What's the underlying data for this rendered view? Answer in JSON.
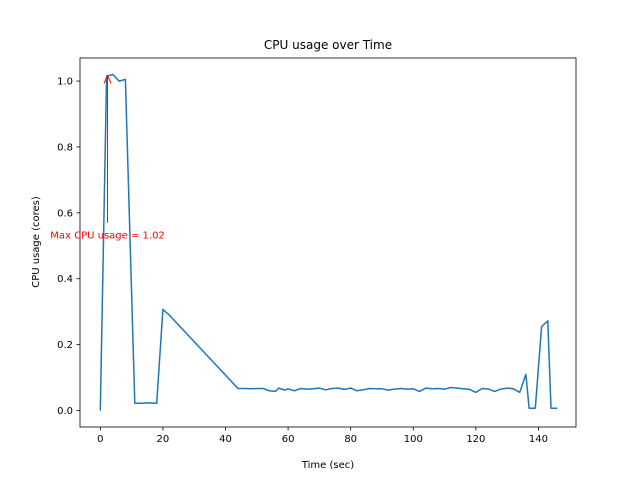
{
  "chart_data": {
    "type": "line",
    "title": "CPU usage over Time",
    "xlabel": "Time (sec)",
    "ylabel": "CPU usage (cores)",
    "xlim": [
      -6.5,
      152
    ],
    "ylim": [
      -0.05,
      1.07
    ],
    "xticks": [
      0,
      20,
      40,
      60,
      80,
      100,
      120,
      140
    ],
    "yticks": [
      0.0,
      0.2,
      0.4,
      0.6,
      0.8,
      1.0
    ],
    "xtick_labels": [
      "0",
      "20",
      "40",
      "60",
      "80",
      "100",
      "120",
      "140"
    ],
    "ytick_labels": [
      "0.0",
      "0.2",
      "0.4",
      "0.6",
      "0.8",
      "1.0"
    ],
    "grid": false,
    "colors": {
      "series": "#1f77b4",
      "annotation": "#ff0000"
    },
    "annotation": {
      "text": "Max CPU usage = 1.02",
      "xy": [
        2.3,
        1.02
      ],
      "xytext": [
        2.3,
        0.57
      ]
    },
    "series": [
      {
        "x": [
          0,
          2,
          4,
          6,
          8,
          11,
          13,
          15,
          18,
          20,
          22,
          44,
          46,
          48,
          50,
          52,
          54,
          56,
          57,
          59,
          60,
          62,
          64,
          66,
          68,
          70,
          72,
          74,
          76,
          78,
          80,
          82,
          84,
          86,
          88,
          90,
          92,
          94,
          96,
          98,
          100,
          102,
          104,
          106,
          108,
          110,
          112,
          114,
          116,
          118,
          120,
          122,
          124,
          126,
          128,
          130,
          132,
          134,
          136,
          137,
          139,
          141,
          143,
          144,
          146
        ],
        "y": [
          0.0,
          1.015,
          1.02,
          1.0,
          1.005,
          0.022,
          0.022,
          0.023,
          0.022,
          0.307,
          0.29,
          0.067,
          0.067,
          0.066,
          0.067,
          0.067,
          0.06,
          0.058,
          0.068,
          0.062,
          0.066,
          0.06,
          0.067,
          0.065,
          0.066,
          0.068,
          0.063,
          0.067,
          0.068,
          0.064,
          0.068,
          0.06,
          0.063,
          0.067,
          0.066,
          0.066,
          0.062,
          0.065,
          0.067,
          0.065,
          0.066,
          0.058,
          0.068,
          0.066,
          0.067,
          0.065,
          0.07,
          0.068,
          0.066,
          0.064,
          0.055,
          0.067,
          0.065,
          0.058,
          0.065,
          0.068,
          0.066,
          0.055,
          0.11,
          0.007,
          0.007,
          0.255,
          0.272,
          0.007,
          0.007
        ]
      }
    ]
  }
}
